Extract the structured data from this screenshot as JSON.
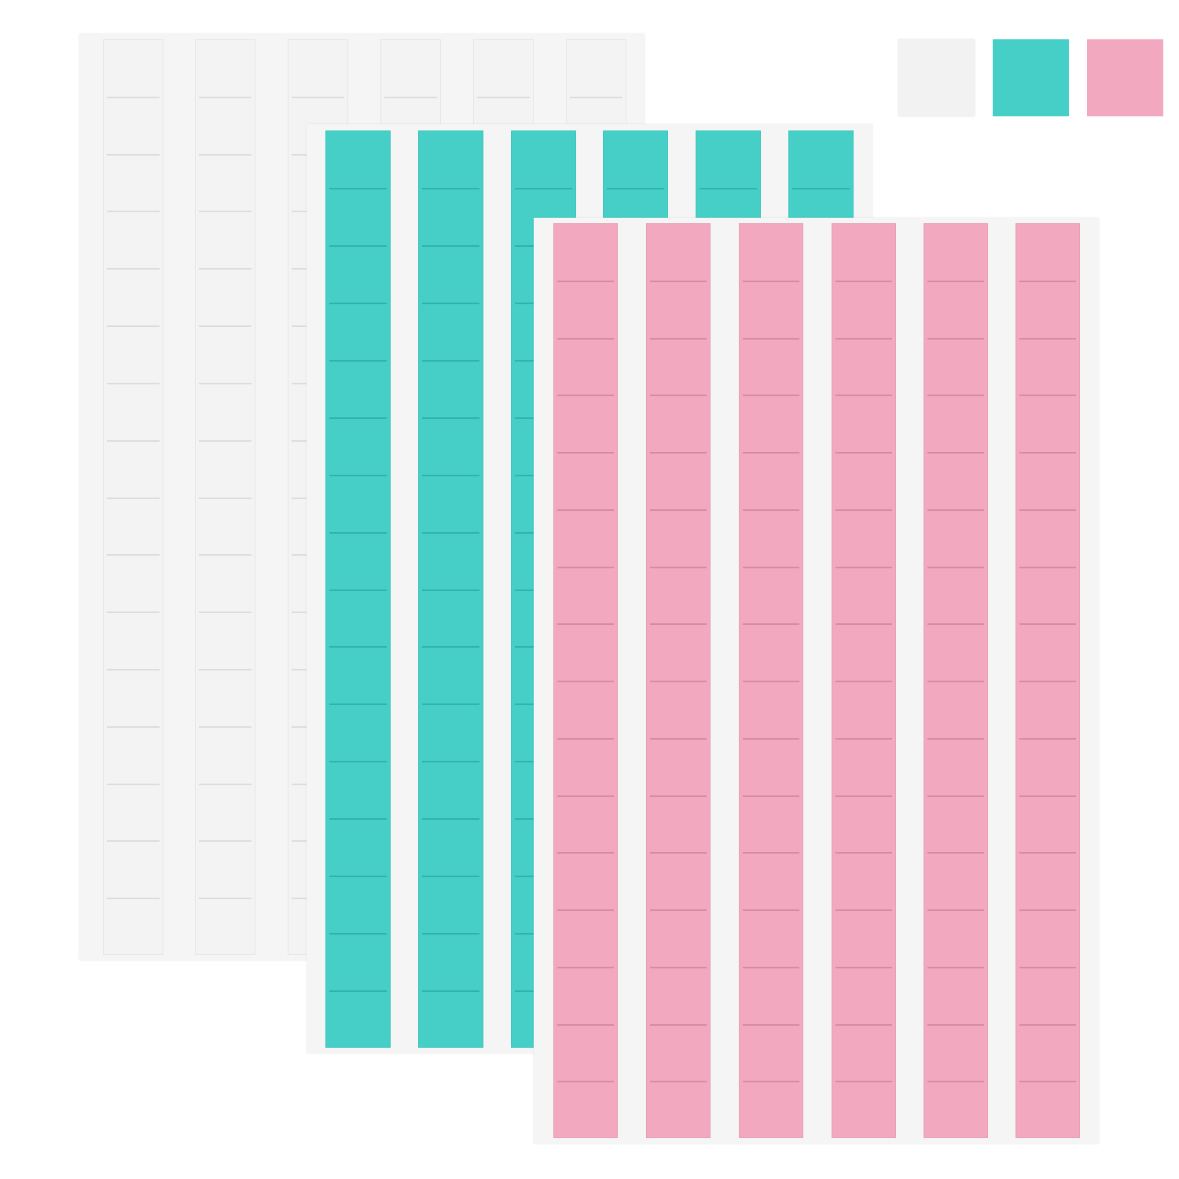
{
  "product": {
    "sheets": [
      {
        "color_name": "white",
        "fill": "#f3f3f3",
        "line": "#dcdcdc"
      },
      {
        "color_name": "teal",
        "fill": "#45cfc6",
        "line": "#2fb3aa"
      },
      {
        "color_name": "pink",
        "fill": "#f2a8bf",
        "line": "#d88aa2"
      }
    ],
    "sheet_background": "#f5f5f5",
    "swatches": [
      "#f2f2f2",
      "#45cfc6",
      "#f2a8bf"
    ]
  }
}
